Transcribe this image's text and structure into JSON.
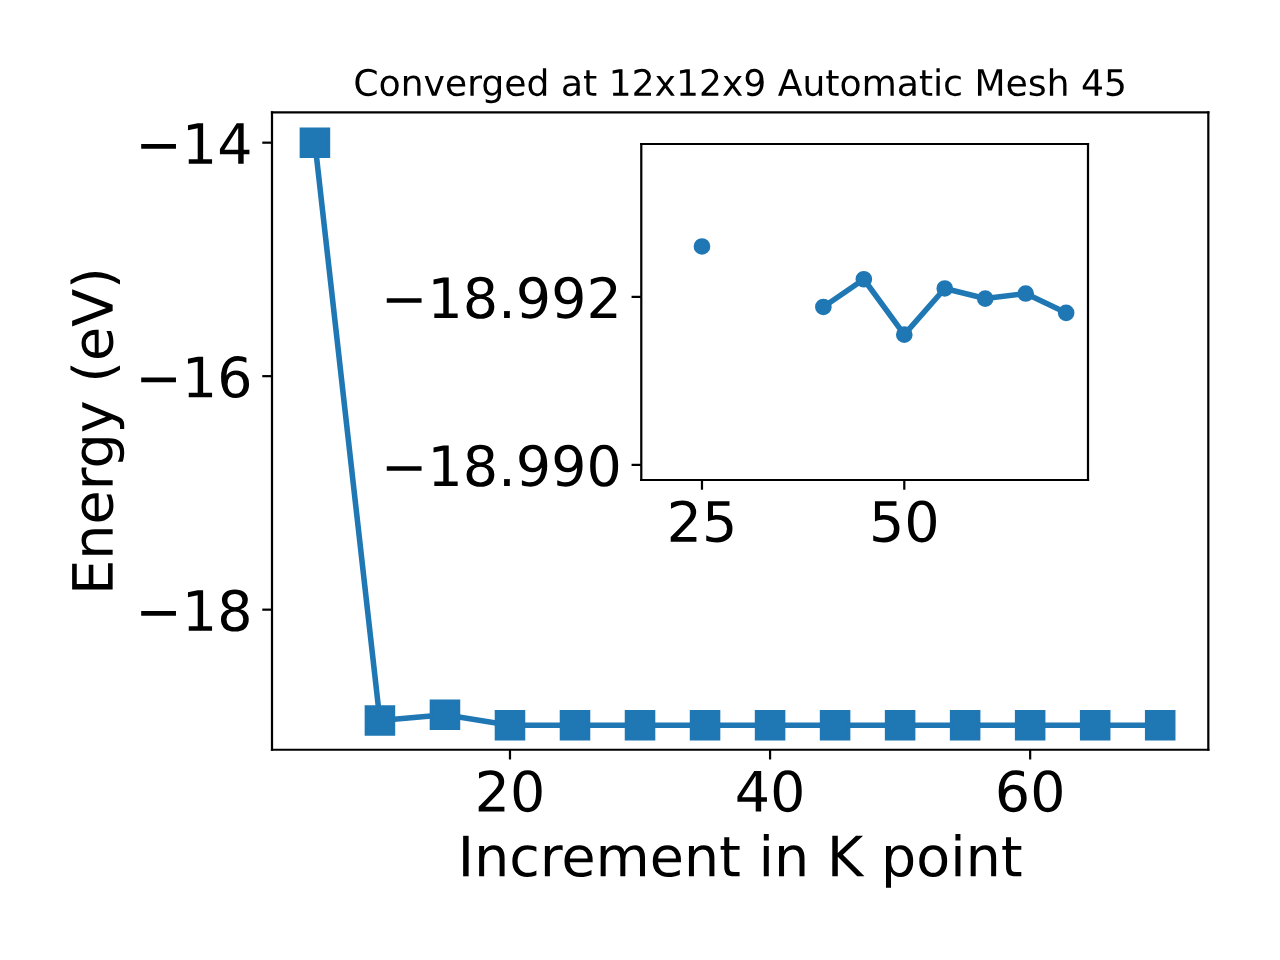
{
  "chart_data": [
    {
      "type": "line",
      "title": "Converged at 12x12x9 Automatic Mesh 45",
      "xlabel": "Increment in K point",
      "ylabel": "Energy (eV)",
      "x": [
        5,
        10,
        15,
        20,
        25,
        30,
        35,
        40,
        45,
        50,
        55,
        60,
        65,
        70
      ],
      "series": [
        {
          "color": "#1f77b4",
          "values": [
            -14.0,
            -18.95,
            -18.9,
            -18.99,
            -18.99,
            -18.99,
            -18.99,
            -18.99,
            -18.99,
            -18.99,
            -18.99,
            -18.99,
            -18.99,
            -18.99
          ]
        }
      ],
      "xlim": [
        1.7,
        73.7
      ],
      "ylim": [
        -19.2,
        -13.74
      ],
      "xticks": [
        20,
        40,
        60
      ],
      "yticks": [
        -14,
        -16,
        -18
      ],
      "marker": "square",
      "line_style": "solid",
      "grid": false,
      "legend": false
    },
    {
      "type": "line",
      "x": [
        25,
        30,
        35,
        40,
        45,
        50,
        55,
        60,
        65,
        70
      ],
      "series": [
        {
          "color": "#1f77b4",
          "values": [
            -18.9926,
            null,
            null,
            -18.99188,
            -18.99221,
            -18.99155,
            -18.9921,
            -18.99198,
            -18.99204,
            -18.99181
          ]
        }
      ],
      "xlim": [
        17.5,
        72.7
      ],
      "ylim": [
        -18.98982,
        -18.99382
      ],
      "xticks": [
        25,
        50
      ],
      "yticks": [
        {
          "value": -18.992,
          "label": "−18.992"
        },
        {
          "value": -18.99,
          "label": "−18.990"
        }
      ],
      "marker": "circle",
      "line_style": "solid",
      "grid": false,
      "legend": false
    }
  ]
}
